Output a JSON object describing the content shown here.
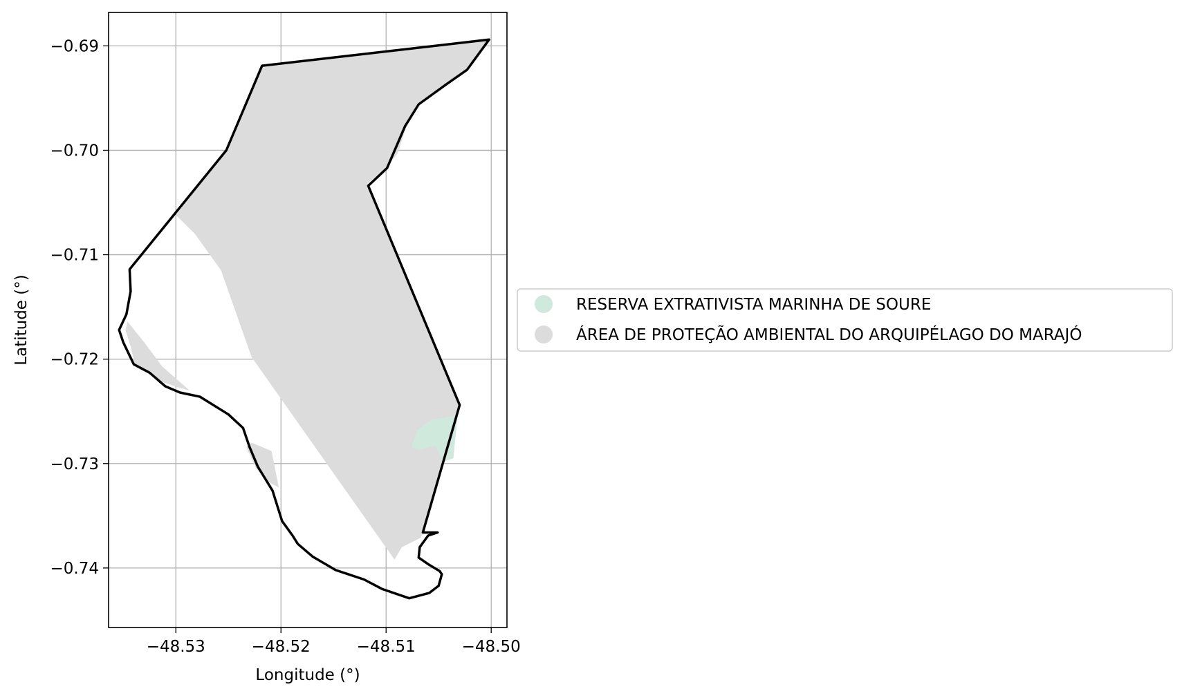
{
  "chart_data": {
    "type": "map",
    "xlabel": "Longitude (°)",
    "ylabel": "Latitude (°)",
    "xlim": [
      -48.5364,
      -48.4985
    ],
    "ylim": [
      -0.7457,
      -0.6868
    ],
    "grid": true,
    "legend_position": "right",
    "x_ticks": [
      {
        "value": -48.53,
        "label": "−48.53"
      },
      {
        "value": -48.52,
        "label": "−48.52"
      },
      {
        "value": -48.51,
        "label": "−48.51"
      },
      {
        "value": -48.5,
        "label": "−48.50"
      }
    ],
    "y_ticks": [
      {
        "value": -0.69,
        "label": "−0.69"
      },
      {
        "value": -0.7,
        "label": "−0.70"
      },
      {
        "value": -0.71,
        "label": "−0.71"
      },
      {
        "value": -0.72,
        "label": "−0.72"
      },
      {
        "value": -0.73,
        "label": "−0.73"
      },
      {
        "value": -0.74,
        "label": "−0.74"
      }
    ],
    "legend": [
      {
        "label": "RESERVA EXTRATIVISTA MARINHA DE SOURE",
        "color": "#cfe9dd"
      },
      {
        "label": "ÁREA DE PROTEÇÃO AMBIENTAL DO ARQUIPÉLAGO DO MARAJÓ",
        "color": "#dcdcdc"
      }
    ],
    "layers": [
      {
        "name": "apa-arquipelago-marajo",
        "fill": "#dcdcdc",
        "polygon": [
          [
            -48.5217,
            -0.6919
          ],
          [
            -48.5002,
            -0.6894
          ],
          [
            -48.5023,
            -0.6923
          ],
          [
            -48.5043,
            -0.6937
          ],
          [
            -48.5069,
            -0.6956
          ],
          [
            -48.5081,
            -0.6978
          ],
          [
            -48.5089,
            -0.7003
          ],
          [
            -48.51,
            -0.7017
          ],
          [
            -48.5118,
            -0.7032
          ],
          [
            -48.503,
            -0.7242
          ],
          [
            -48.5067,
            -0.7371
          ],
          [
            -48.5085,
            -0.738
          ],
          [
            -48.5092,
            -0.7392
          ],
          [
            -48.5228,
            -0.7198
          ],
          [
            -48.5257,
            -0.7115
          ],
          [
            -48.5282,
            -0.708
          ],
          [
            -48.53,
            -0.7062
          ],
          [
            -48.5253,
            -0.7001
          ]
        ]
      },
      {
        "name": "apa-arquipelago-marajo-west-strip",
        "fill": "#dcdcdc",
        "polygon": [
          [
            -48.5346,
            -0.7164
          ],
          [
            -48.533,
            -0.7184
          ],
          [
            -48.5313,
            -0.7207
          ],
          [
            -48.5287,
            -0.723
          ],
          [
            -48.5298,
            -0.7227
          ],
          [
            -48.5315,
            -0.7221
          ],
          [
            -48.5328,
            -0.7212
          ],
          [
            -48.5339,
            -0.7205
          ],
          [
            -48.5343,
            -0.7188
          ],
          [
            -48.5348,
            -0.7172
          ]
        ]
      },
      {
        "name": "apa-arquipelago-marajo-south-patch",
        "fill": "#dcdcdc",
        "polygon": [
          [
            -48.5228,
            -0.728
          ],
          [
            -48.5209,
            -0.7288
          ],
          [
            -48.5202,
            -0.7323
          ],
          [
            -48.5213,
            -0.7317
          ],
          [
            -48.5224,
            -0.7304
          ],
          [
            -48.5233,
            -0.7284
          ]
        ]
      },
      {
        "name": "resex-marinha-de-soure",
        "fill": "#cfe9dd",
        "polygon": [
          [
            -48.5076,
            -0.7284
          ],
          [
            -48.507,
            -0.7268
          ],
          [
            -48.5057,
            -0.7258
          ],
          [
            -48.5032,
            -0.7254
          ],
          [
            -48.5036,
            -0.7295
          ],
          [
            -48.5046,
            -0.7298
          ],
          [
            -48.5053,
            -0.7283
          ],
          [
            -48.5069,
            -0.7287
          ]
        ]
      }
    ],
    "boundary": [
      [
        -48.5002,
        -0.6894
      ],
      [
        -48.5218,
        -0.6919
      ],
      [
        -48.5252,
        -0.7
      ],
      [
        -48.5344,
        -0.7114
      ],
      [
        -48.5343,
        -0.7135
      ],
      [
        -48.5347,
        -0.7157
      ],
      [
        -48.5354,
        -0.7172
      ],
      [
        -48.535,
        -0.7184
      ],
      [
        -48.534,
        -0.7205
      ],
      [
        -48.5325,
        -0.7213
      ],
      [
        -48.531,
        -0.7226
      ],
      [
        -48.5296,
        -0.7232
      ],
      [
        -48.5277,
        -0.7236
      ],
      [
        -48.525,
        -0.7253
      ],
      [
        -48.5236,
        -0.7266
      ],
      [
        -48.523,
        -0.7284
      ],
      [
        -48.5222,
        -0.7303
      ],
      [
        -48.5208,
        -0.7326
      ],
      [
        -48.5199,
        -0.7355
      ],
      [
        -48.5189,
        -0.7369
      ],
      [
        -48.5184,
        -0.7377
      ],
      [
        -48.517,
        -0.7389
      ],
      [
        -48.5148,
        -0.7402
      ],
      [
        -48.5121,
        -0.7411
      ],
      [
        -48.5104,
        -0.742
      ],
      [
        -48.5078,
        -0.7429
      ],
      [
        -48.5059,
        -0.7424
      ],
      [
        -48.505,
        -0.7417
      ],
      [
        -48.5047,
        -0.7406
      ],
      [
        -48.5049,
        -0.7403
      ],
      [
        -48.5059,
        -0.7397
      ],
      [
        -48.5069,
        -0.739
      ],
      [
        -48.5068,
        -0.738
      ],
      [
        -48.506,
        -0.7369
      ],
      [
        -48.5051,
        -0.7366
      ],
      [
        -48.5065,
        -0.7366
      ],
      [
        -48.503,
        -0.7244
      ],
      [
        -48.5117,
        -0.7034
      ],
      [
        -48.5099,
        -0.7017
      ],
      [
        -48.5082,
        -0.6977
      ],
      [
        -48.5069,
        -0.6956
      ],
      [
        -48.5043,
        -0.6937
      ],
      [
        -48.5023,
        -0.6923
      ],
      [
        -48.5002,
        -0.6894
      ]
    ]
  }
}
